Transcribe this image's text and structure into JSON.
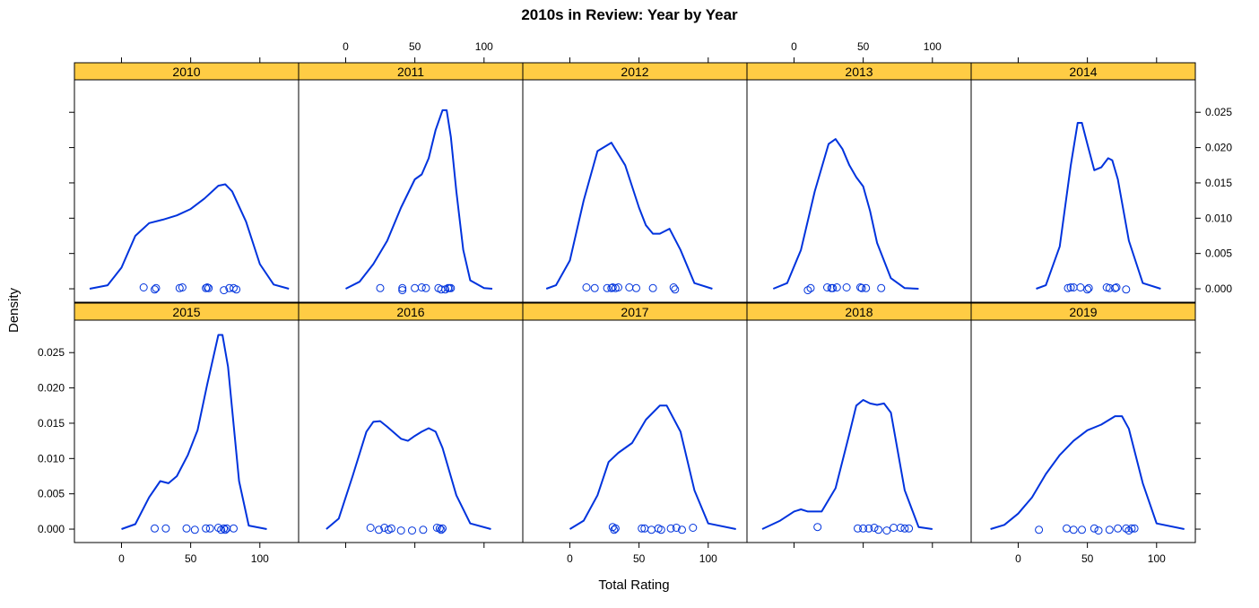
{
  "chart_data": {
    "type": "density",
    "title": "2010s in Review: Year by Year",
    "xlabel": "Total Rating",
    "ylabel": "Density",
    "xlim": [
      -34,
      128
    ],
    "ylim": [
      -0.0019,
      0.0296
    ],
    "x_ticks": [
      0,
      50,
      100
    ],
    "y_ticks": [
      0.0,
      0.005,
      0.01,
      0.015,
      0.02,
      0.025
    ],
    "y_tick_labels": [
      "0.000",
      "0.005",
      "0.010",
      "0.015",
      "0.020",
      "0.025"
    ],
    "layout": {
      "columns": 5,
      "rows": 2
    },
    "line_color": "#0033dd",
    "strip_color": "#ffcc44",
    "panels": [
      {
        "name": "2010",
        "density": [
          [
            -23,
            0
          ],
          [
            -10,
            0.0005
          ],
          [
            0,
            0.003
          ],
          [
            10,
            0.0075
          ],
          [
            20,
            0.0093
          ],
          [
            30,
            0.0098
          ],
          [
            40,
            0.0104
          ],
          [
            50,
            0.0113
          ],
          [
            60,
            0.0128
          ],
          [
            70,
            0.0146
          ],
          [
            75,
            0.0148
          ],
          [
            80,
            0.0138
          ],
          [
            90,
            0.0095
          ],
          [
            100,
            0.0035
          ],
          [
            110,
            0.0006
          ],
          [
            121,
            0
          ]
        ],
        "points": [
          [
            16,
            0.0002
          ],
          [
            24,
            -0.0001
          ],
          [
            25,
            0.0001
          ],
          [
            42,
            0.0001
          ],
          [
            44,
            0.0002
          ],
          [
            61,
            0.0001
          ],
          [
            62,
            0.0002
          ],
          [
            63,
            0.0001
          ],
          [
            74,
            -0.0002
          ],
          [
            78,
            0.0001
          ],
          [
            81,
            0.0001
          ],
          [
            83,
            -0.0001
          ]
        ]
      },
      {
        "name": "2011",
        "density": [
          [
            0,
            0
          ],
          [
            10,
            0.001
          ],
          [
            20,
            0.0035
          ],
          [
            30,
            0.0068
          ],
          [
            40,
            0.0115
          ],
          [
            50,
            0.0155
          ],
          [
            55,
            0.0162
          ],
          [
            60,
            0.0185
          ],
          [
            65,
            0.0225
          ],
          [
            70,
            0.0253
          ],
          [
            73,
            0.0253
          ],
          [
            76,
            0.0215
          ],
          [
            80,
            0.0138
          ],
          [
            85,
            0.0055
          ],
          [
            90,
            0.0012
          ],
          [
            100,
            0.0001
          ],
          [
            106,
            0
          ]
        ],
        "points": [
          [
            25,
            0.0001
          ],
          [
            41,
            0.0001
          ],
          [
            41,
            -0.0002
          ],
          [
            50,
            0.0001
          ],
          [
            55,
            0.0002
          ],
          [
            58,
            0.0001
          ],
          [
            67,
            0.0001
          ],
          [
            69,
            -0.0001
          ],
          [
            72,
            -0.0001
          ],
          [
            74,
            0.0001
          ],
          [
            75,
            0.0001
          ],
          [
            76,
            0.0001
          ]
        ]
      },
      {
        "name": "2012",
        "density": [
          [
            -17,
            0
          ],
          [
            -10,
            0.0005
          ],
          [
            0,
            0.004
          ],
          [
            10,
            0.0125
          ],
          [
            20,
            0.0195
          ],
          [
            30,
            0.0207
          ],
          [
            40,
            0.0175
          ],
          [
            50,
            0.0115
          ],
          [
            55,
            0.009
          ],
          [
            60,
            0.0078
          ],
          [
            65,
            0.0078
          ],
          [
            72,
            0.0085
          ],
          [
            80,
            0.0055
          ],
          [
            90,
            0.0008
          ],
          [
            103,
            0
          ]
        ],
        "points": [
          [
            12,
            0.0002
          ],
          [
            18,
            0.0001
          ],
          [
            27,
            0.0001
          ],
          [
            30,
            0.0001
          ],
          [
            31,
            0.0002
          ],
          [
            33,
            0.0001
          ],
          [
            35,
            0.0002
          ],
          [
            43,
            0.0002
          ],
          [
            48,
            0.0001
          ],
          [
            60,
            0.0001
          ],
          [
            75,
            0.0002
          ],
          [
            76,
            -0.0001
          ]
        ]
      },
      {
        "name": "2013",
        "density": [
          [
            -15,
            0
          ],
          [
            -5,
            0.0008
          ],
          [
            5,
            0.0055
          ],
          [
            15,
            0.0138
          ],
          [
            25,
            0.0205
          ],
          [
            30,
            0.0212
          ],
          [
            35,
            0.0198
          ],
          [
            40,
            0.0175
          ],
          [
            45,
            0.0158
          ],
          [
            50,
            0.0145
          ],
          [
            55,
            0.011
          ],
          [
            60,
            0.0065
          ],
          [
            70,
            0.0015
          ],
          [
            80,
            0.0001
          ],
          [
            90,
            0
          ]
        ],
        "points": [
          [
            10,
            -0.0002
          ],
          [
            12,
            0.0001
          ],
          [
            24,
            0.0002
          ],
          [
            27,
            0.0001
          ],
          [
            28,
            0.0001
          ],
          [
            31,
            0.0002
          ],
          [
            38,
            0.0002
          ],
          [
            48,
            0.0002
          ],
          [
            49,
            0.0001
          ],
          [
            52,
            0.0001
          ],
          [
            63,
            0.0001
          ]
        ]
      },
      {
        "name": "2014",
        "density": [
          [
            13,
            0
          ],
          [
            20,
            0.0005
          ],
          [
            30,
            0.006
          ],
          [
            38,
            0.0175
          ],
          [
            43,
            0.0235
          ],
          [
            46,
            0.0235
          ],
          [
            50,
            0.0205
          ],
          [
            55,
            0.0168
          ],
          [
            60,
            0.0172
          ],
          [
            65,
            0.0185
          ],
          [
            68,
            0.0182
          ],
          [
            72,
            0.0155
          ],
          [
            80,
            0.0068
          ],
          [
            90,
            0.0008
          ],
          [
            103,
            0
          ]
        ],
        "points": [
          [
            36,
            0.0001
          ],
          [
            38,
            0.0002
          ],
          [
            40,
            0.0002
          ],
          [
            45,
            0.0002
          ],
          [
            50,
            -0.0001
          ],
          [
            51,
            0.0001
          ],
          [
            64,
            0.0002
          ],
          [
            66,
            0.0001
          ],
          [
            70,
            0.0001
          ],
          [
            71,
            0.0002
          ],
          [
            78,
            -0.0001
          ]
        ]
      },
      {
        "name": "2015",
        "density": [
          [
            0,
            0
          ],
          [
            10,
            0.0007
          ],
          [
            20,
            0.0045
          ],
          [
            28,
            0.0068
          ],
          [
            34,
            0.0065
          ],
          [
            40,
            0.0075
          ],
          [
            48,
            0.0105
          ],
          [
            55,
            0.014
          ],
          [
            62,
            0.0205
          ],
          [
            70,
            0.0275
          ],
          [
            73,
            0.0275
          ],
          [
            77,
            0.023
          ],
          [
            85,
            0.0068
          ],
          [
            92,
            0.0005
          ],
          [
            105,
            0
          ]
        ],
        "points": [
          [
            24,
            0.0001
          ],
          [
            32,
            0.0001
          ],
          [
            47,
            0.0001
          ],
          [
            53,
            -0.0001
          ],
          [
            61,
            0.0001
          ],
          [
            64,
            0.0001
          ],
          [
            70,
            0.0002
          ],
          [
            72,
            -0.0001
          ],
          [
            74,
            0.0001
          ],
          [
            75,
            -0.0001
          ],
          [
            76,
            0.0001
          ],
          [
            81,
            0.0001
          ]
        ]
      },
      {
        "name": "2016",
        "density": [
          [
            -14,
            0
          ],
          [
            -5,
            0.0015
          ],
          [
            5,
            0.0075
          ],
          [
            15,
            0.0138
          ],
          [
            20,
            0.0152
          ],
          [
            25,
            0.0153
          ],
          [
            30,
            0.0145
          ],
          [
            40,
            0.0128
          ],
          [
            45,
            0.0125
          ],
          [
            50,
            0.0132
          ],
          [
            55,
            0.0138
          ],
          [
            60,
            0.0143
          ],
          [
            65,
            0.0138
          ],
          [
            70,
            0.0115
          ],
          [
            80,
            0.0048
          ],
          [
            90,
            0.0008
          ],
          [
            105,
            0
          ]
        ],
        "points": [
          [
            18,
            0.0002
          ],
          [
            24,
            -0.0001
          ],
          [
            28,
            0.0002
          ],
          [
            31,
            -0.0001
          ],
          [
            33,
            0.0001
          ],
          [
            40,
            -0.0002
          ],
          [
            48,
            -0.0002
          ],
          [
            56,
            -0.0001
          ],
          [
            66,
            0.0002
          ],
          [
            68,
            0.0001
          ],
          [
            69,
            -0.0001
          ],
          [
            70,
            0.0001
          ]
        ]
      },
      {
        "name": "2017",
        "density": [
          [
            0,
            0
          ],
          [
            10,
            0.0012
          ],
          [
            20,
            0.0048
          ],
          [
            28,
            0.0095
          ],
          [
            35,
            0.0108
          ],
          [
            45,
            0.0122
          ],
          [
            55,
            0.0155
          ],
          [
            65,
            0.0175
          ],
          [
            70,
            0.0175
          ],
          [
            80,
            0.0138
          ],
          [
            90,
            0.0055
          ],
          [
            100,
            0.0008
          ],
          [
            120,
            0
          ]
        ],
        "points": [
          [
            31,
            0.0003
          ],
          [
            32,
            -0.0001
          ],
          [
            33,
            0.0001
          ],
          [
            52,
            0.0001
          ],
          [
            54,
            0.0001
          ],
          [
            59,
            -0.0001
          ],
          [
            64,
            0.0001
          ],
          [
            66,
            -0.0001
          ],
          [
            73,
            0.0001
          ],
          [
            77,
            0.0002
          ],
          [
            81,
            -0.0001
          ],
          [
            89,
            0.0002
          ]
        ]
      },
      {
        "name": "2018",
        "density": [
          [
            -23,
            0
          ],
          [
            -10,
            0.0012
          ],
          [
            0,
            0.0025
          ],
          [
            5,
            0.0028
          ],
          [
            10,
            0.0025
          ],
          [
            20,
            0.0025
          ],
          [
            30,
            0.0058
          ],
          [
            40,
            0.0135
          ],
          [
            45,
            0.0175
          ],
          [
            50,
            0.0183
          ],
          [
            55,
            0.0178
          ],
          [
            60,
            0.0176
          ],
          [
            65,
            0.0178
          ],
          [
            70,
            0.0165
          ],
          [
            80,
            0.0055
          ],
          [
            90,
            0.0003
          ],
          [
            100,
            0
          ]
        ],
        "points": [
          [
            17,
            0.0003
          ],
          [
            46,
            0.0001
          ],
          [
            50,
            0.0001
          ],
          [
            54,
            0.0001
          ],
          [
            58,
            0.0002
          ],
          [
            61,
            -0.0001
          ],
          [
            67,
            -0.0002
          ],
          [
            72,
            0.0002
          ],
          [
            77,
            0.0002
          ],
          [
            80,
            0.0001
          ],
          [
            83,
            0.0001
          ]
        ]
      },
      {
        "name": "2019",
        "density": [
          [
            -20,
            0
          ],
          [
            -10,
            0.0006
          ],
          [
            0,
            0.0022
          ],
          [
            10,
            0.0045
          ],
          [
            20,
            0.0078
          ],
          [
            30,
            0.0105
          ],
          [
            40,
            0.0125
          ],
          [
            50,
            0.014
          ],
          [
            60,
            0.0148
          ],
          [
            70,
            0.016
          ],
          [
            75,
            0.016
          ],
          [
            80,
            0.0142
          ],
          [
            90,
            0.0065
          ],
          [
            100,
            0.0008
          ],
          [
            120,
            0
          ]
        ],
        "points": [
          [
            15,
            -0.0001
          ],
          [
            35,
            0.0001
          ],
          [
            40,
            -0.0001
          ],
          [
            46,
            -0.0001
          ],
          [
            55,
            0.0001
          ],
          [
            58,
            -0.0002
          ],
          [
            66,
            -0.0001
          ],
          [
            72,
            0.0001
          ],
          [
            78,
            0.0001
          ],
          [
            80,
            -0.0002
          ],
          [
            82,
            0.0001
          ],
          [
            84,
            0.0001
          ]
        ]
      }
    ]
  }
}
